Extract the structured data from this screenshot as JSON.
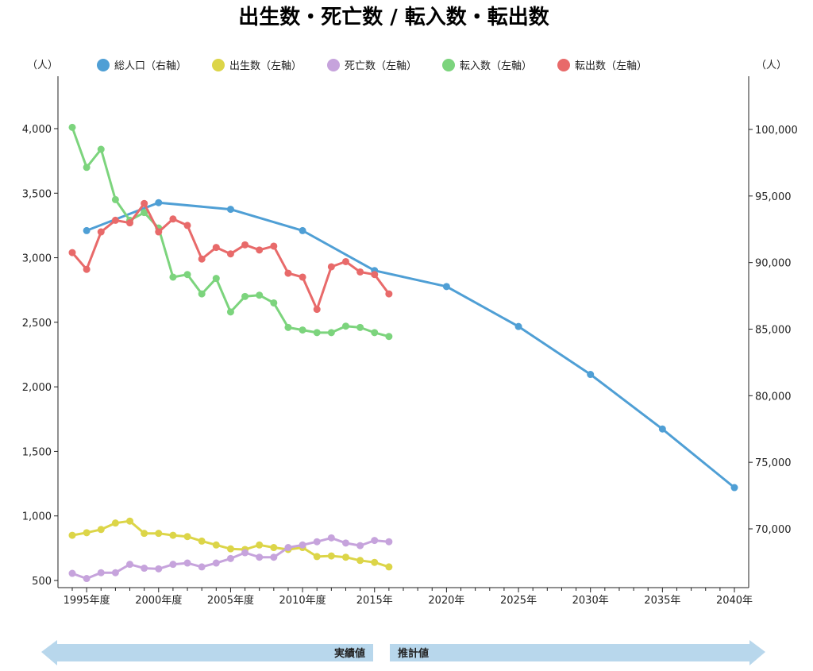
{
  "chart_data": {
    "type": "line",
    "title": "出生数・死亡数 / 転入数・転出数",
    "left_unit": "（人）",
    "right_unit": "（人）",
    "left_ticks": [
      {
        "value": 500,
        "label": "500"
      },
      {
        "value": 1000,
        "label": "1,000"
      },
      {
        "value": 1500,
        "label": "1,500"
      },
      {
        "value": 2000,
        "label": "2,000"
      },
      {
        "value": 2500,
        "label": "2,500"
      },
      {
        "value": 3000,
        "label": "3,000"
      },
      {
        "value": 3500,
        "label": "3,500"
      },
      {
        "value": 4000,
        "label": "4,000"
      }
    ],
    "right_ticks": [
      {
        "value": 70000,
        "label": "70,000"
      },
      {
        "value": 75000,
        "label": "75,000"
      },
      {
        "value": 80000,
        "label": "80,000"
      },
      {
        "value": 85000,
        "label": "85,000"
      },
      {
        "value": 90000,
        "label": "90,000"
      },
      {
        "value": 95000,
        "label": "95,000"
      },
      {
        "value": 100000,
        "label": "100,000"
      }
    ],
    "x_ticks": [
      {
        "value": 1995,
        "label": "1995年度"
      },
      {
        "value": 2000,
        "label": "2000年度"
      },
      {
        "value": 2005,
        "label": "2005年度"
      },
      {
        "value": 2010,
        "label": "2010年度"
      },
      {
        "value": 2015,
        "label": "2015年"
      },
      {
        "value": 2020,
        "label": "2020年"
      },
      {
        "value": 2025,
        "label": "2025年"
      },
      {
        "value": 2030,
        "label": "2030年"
      },
      {
        "value": 2035,
        "label": "2035年"
      },
      {
        "value": 2040,
        "label": "2040年"
      }
    ],
    "xlim": [
      1994,
      2041
    ],
    "ylim_left": [
      460,
      4380
    ],
    "ylim_right": [
      65900,
      104000
    ],
    "series": [
      {
        "name": "総人口（右軸）",
        "axis": "right",
        "color": "#4f9fd5",
        "x": [
          1995,
          2000,
          2005,
          2010,
          2015,
          2020,
          2025,
          2030,
          2035,
          2040
        ],
        "values": [
          92400,
          94500,
          94000,
          92400,
          89400,
          88200,
          85200,
          81600,
          77500,
          73100
        ]
      },
      {
        "name": "出生数（左軸）",
        "axis": "left",
        "color": "#dcd548",
        "x": [
          1994,
          1995,
          1996,
          1997,
          1998,
          1999,
          2000,
          2001,
          2002,
          2003,
          2004,
          2005,
          2006,
          2007,
          2008,
          2009,
          2010,
          2011,
          2012,
          2013,
          2014,
          2015,
          2016
        ],
        "values": [
          850,
          870,
          895,
          945,
          960,
          865,
          865,
          850,
          840,
          805,
          775,
          745,
          740,
          775,
          755,
          740,
          755,
          685,
          690,
          680,
          655,
          640,
          605
        ]
      },
      {
        "name": "死亡数（左軸）",
        "axis": "left",
        "color": "#c6a3dc",
        "x": [
          1994,
          1995,
          1996,
          1997,
          1998,
          1999,
          2000,
          2001,
          2002,
          2003,
          2004,
          2005,
          2006,
          2007,
          2008,
          2009,
          2010,
          2011,
          2012,
          2013,
          2014,
          2015,
          2016
        ],
        "values": [
          555,
          515,
          560,
          560,
          625,
          595,
          590,
          625,
          635,
          605,
          635,
          670,
          715,
          680,
          680,
          755,
          775,
          800,
          830,
          790,
          770,
          810,
          800
        ]
      },
      {
        "name": "転入数（左軸）",
        "axis": "left",
        "color": "#7cd47d",
        "x": [
          1994,
          1995,
          1996,
          1997,
          1998,
          1999,
          2000,
          2001,
          2002,
          2003,
          2004,
          2005,
          2006,
          2007,
          2008,
          2009,
          2010,
          2011,
          2012,
          2013,
          2014,
          2015,
          2016
        ],
        "values": [
          4010,
          3700,
          3840,
          3450,
          3290,
          3350,
          3230,
          2850,
          2870,
          2720,
          2840,
          2580,
          2700,
          2710,
          2650,
          2460,
          2440,
          2420,
          2420,
          2470,
          2460,
          2420,
          2390
        ]
      },
      {
        "name": "転出数（左軸）",
        "axis": "left",
        "color": "#e86a6a",
        "x": [
          1994,
          1995,
          1996,
          1997,
          1998,
          1999,
          2000,
          2001,
          2002,
          2003,
          2004,
          2005,
          2006,
          2007,
          2008,
          2009,
          2010,
          2011,
          2012,
          2013,
          2014,
          2015,
          2016
        ],
        "values": [
          3040,
          2910,
          3200,
          3290,
          3270,
          3420,
          3200,
          3300,
          3250,
          2990,
          3080,
          3030,
          3100,
          3060,
          3090,
          2880,
          2850,
          2600,
          2930,
          2970,
          2890,
          2870,
          2720
        ]
      }
    ]
  },
  "arrows": {
    "actual_label": "実績値",
    "projection_label": "推計値",
    "color": "#b8d7ec"
  }
}
